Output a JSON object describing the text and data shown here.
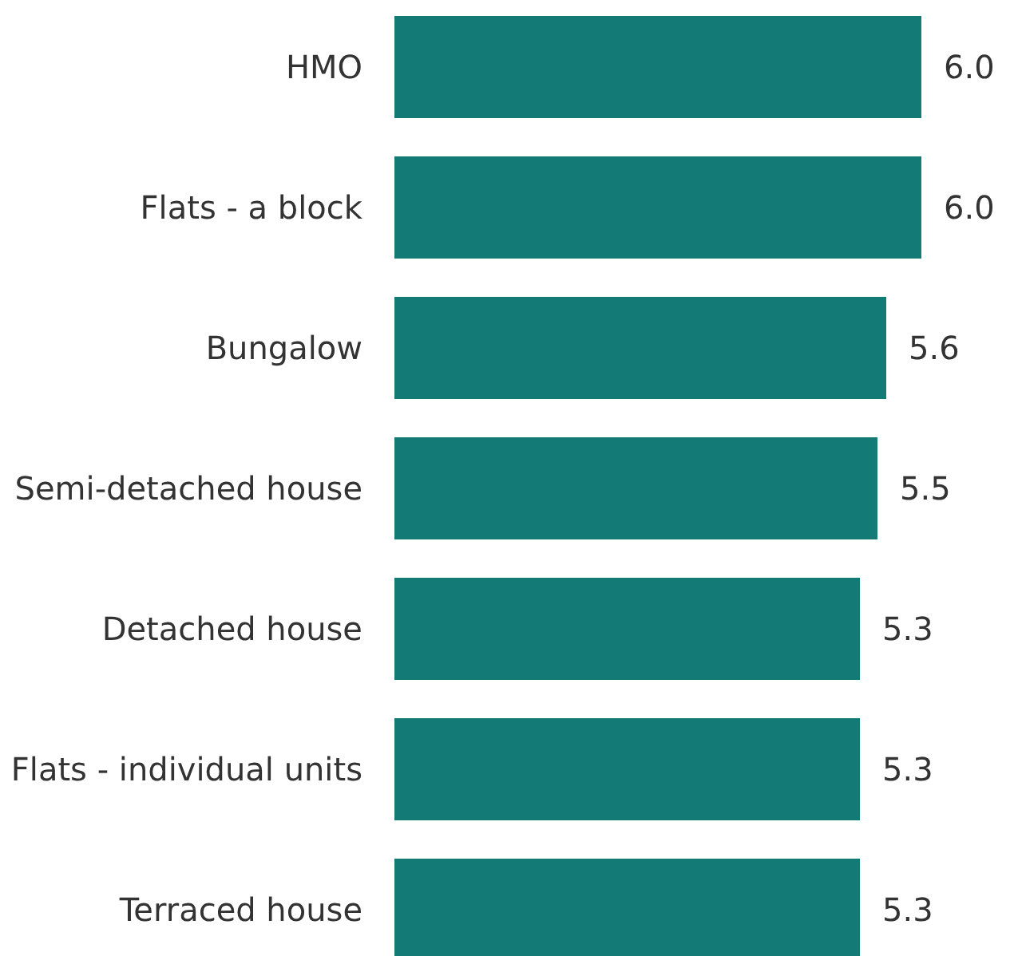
{
  "chart_data": {
    "type": "bar",
    "orientation": "horizontal",
    "categories": [
      "HMO",
      "Flats - a block",
      "Bungalow",
      "Semi-detached house",
      "Detached house",
      "Flats - individual units",
      "Terraced house"
    ],
    "values": [
      6.0,
      6.0,
      5.6,
      5.5,
      5.3,
      5.3,
      5.3
    ],
    "value_labels": [
      "6.0",
      "6.0",
      "5.6",
      "5.5",
      "5.3",
      "5.3",
      "5.3"
    ],
    "color": "#137a76",
    "tick_labels": "y",
    "grid": false,
    "legend": false
  }
}
